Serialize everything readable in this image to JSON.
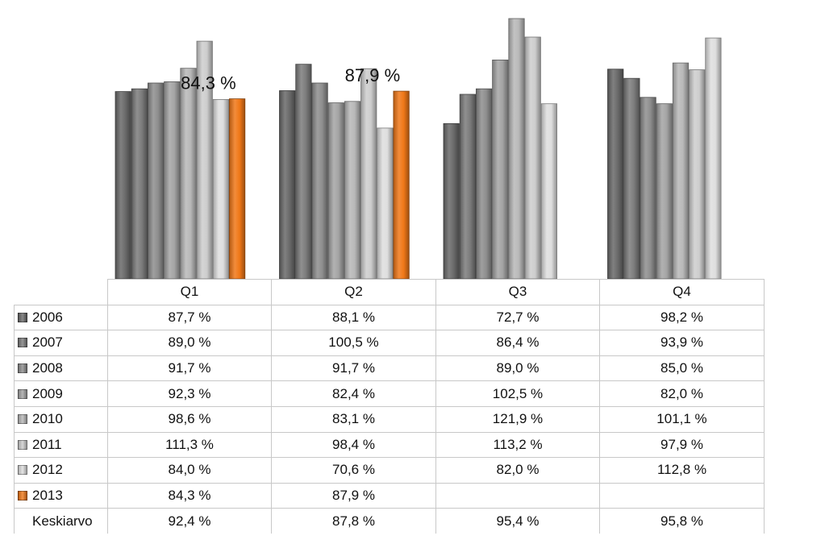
{
  "chart_data": {
    "type": "bar",
    "categories": [
      "Q1",
      "Q2",
      "Q3",
      "Q4"
    ],
    "series": [
      {
        "name": "2006",
        "values": [
          "87,7 %",
          "88,1 %",
          "72,7 %",
          "98,2 %"
        ],
        "num": [
          87.7,
          88.1,
          72.7,
          98.2
        ],
        "color": "#6a6a6a"
      },
      {
        "name": "2007",
        "values": [
          "89,0 %",
          "100,5 %",
          "86,4 %",
          "93,9 %"
        ],
        "num": [
          89.0,
          100.5,
          86.4,
          93.9
        ],
        "color": "#7c7c7c"
      },
      {
        "name": "2008",
        "values": [
          "91,7 %",
          "91,7 %",
          "89,0 %",
          "85,0 %"
        ],
        "num": [
          91.7,
          91.7,
          89.0,
          85.0
        ],
        "color": "#8e8e8e"
      },
      {
        "name": "2009",
        "values": [
          "92,3 %",
          "82,4 %",
          "102,5 %",
          "82,0 %"
        ],
        "num": [
          92.3,
          82.4,
          102.5,
          82.0
        ],
        "color": "#a4a4a4"
      },
      {
        "name": "2010",
        "values": [
          "98,6 %",
          "83,1 %",
          "121,9 %",
          "101,1 %"
        ],
        "num": [
          98.6,
          83.1,
          121.9,
          101.1
        ],
        "color": "#b8b8b8"
      },
      {
        "name": "2011",
        "values": [
          "111,3 %",
          "98,4 %",
          "113,2 %",
          "97,9 %"
        ],
        "num": [
          111.3,
          98.4,
          113.2,
          97.9
        ],
        "color": "#cdcdcd"
      },
      {
        "name": "2012",
        "values": [
          "84,0 %",
          "70,6 %",
          "82,0 %",
          "112,8 %"
        ],
        "num": [
          84.0,
          70.6,
          82.0,
          112.8
        ],
        "color": "#dedede"
      },
      {
        "name": "2013",
        "values": [
          "84,3 %",
          "87,9 %",
          "",
          ""
        ],
        "num": [
          84.3,
          87.9,
          null,
          null
        ],
        "color": "#f07818"
      }
    ],
    "summary_row": {
      "name": "Keskiarvo",
      "values": [
        "92,4 %",
        "87,8 %",
        "95,4 %",
        "95,8 %"
      ]
    },
    "data_labels": [
      {
        "series": "2013",
        "category": "Q1",
        "text": "84,3 %"
      },
      {
        "series": "2013",
        "category": "Q2",
        "text": "87,9 %"
      }
    ],
    "title": "",
    "xlabel": "",
    "ylabel": "",
    "legend": "data-table",
    "grid": false
  }
}
